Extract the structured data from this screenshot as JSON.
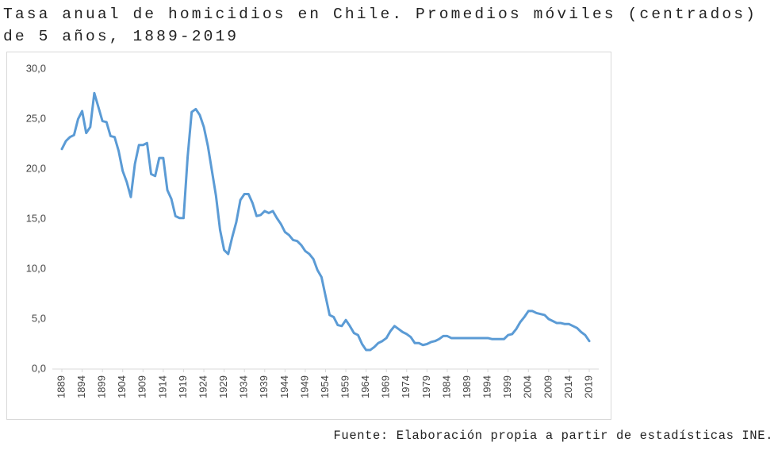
{
  "chart_data": {
    "type": "line",
    "title": "Tasa anual de homicidios en Chile. Promedios móviles (centrados) de 5 años, 1889-2019",
    "source": "Fuente: Elaboración propia a partir de estadísticas INE.",
    "x": [
      1889,
      1890,
      1891,
      1892,
      1893,
      1894,
      1895,
      1896,
      1897,
      1898,
      1899,
      1900,
      1901,
      1902,
      1903,
      1904,
      1905,
      1906,
      1907,
      1908,
      1909,
      1910,
      1911,
      1912,
      1913,
      1914,
      1915,
      1916,
      1917,
      1918,
      1919,
      1920,
      1921,
      1922,
      1923,
      1924,
      1925,
      1926,
      1927,
      1928,
      1929,
      1930,
      1931,
      1932,
      1933,
      1934,
      1935,
      1936,
      1937,
      1938,
      1939,
      1940,
      1941,
      1942,
      1943,
      1944,
      1945,
      1946,
      1947,
      1948,
      1949,
      1950,
      1951,
      1952,
      1953,
      1954,
      1955,
      1956,
      1957,
      1958,
      1959,
      1960,
      1961,
      1962,
      1963,
      1964,
      1965,
      1966,
      1967,
      1968,
      1969,
      1970,
      1971,
      1972,
      1973,
      1974,
      1975,
      1976,
      1977,
      1978,
      1979,
      1980,
      1981,
      1982,
      1983,
      1984,
      1985,
      1986,
      1987,
      1988,
      1989,
      1990,
      1991,
      1992,
      1993,
      1994,
      1995,
      1996,
      1997,
      1998,
      1999,
      2000,
      2001,
      2002,
      2003,
      2004,
      2005,
      2006,
      2007,
      2008,
      2009,
      2010,
      2011,
      2012,
      2013,
      2014,
      2015,
      2016,
      2017,
      2018,
      2019
    ],
    "series": [
      {
        "color": "#5b9bd5",
        "values": [
          22.0,
          22.8,
          23.2,
          23.4,
          25.0,
          25.8,
          23.6,
          24.2,
          27.6,
          26.2,
          24.8,
          24.7,
          23.3,
          23.2,
          21.8,
          19.8,
          18.7,
          17.2,
          20.5,
          22.4,
          22.4,
          22.6,
          19.5,
          19.3,
          21.1,
          21.1,
          17.9,
          17.0,
          15.3,
          15.1,
          15.1,
          21.2,
          25.7,
          26.0,
          25.4,
          24.2,
          22.3,
          19.8,
          17.3,
          13.9,
          11.9,
          11.5,
          13.2,
          14.7,
          16.9,
          17.5,
          17.5,
          16.6,
          15.3,
          15.4,
          15.8,
          15.6,
          15.8,
          15.1,
          14.5,
          13.7,
          13.4,
          12.9,
          12.8,
          12.4,
          11.8,
          11.5,
          11.0,
          9.9,
          9.2,
          7.3,
          5.4,
          5.2,
          4.4,
          4.3,
          4.9,
          4.3,
          3.6,
          3.4,
          2.5,
          1.9,
          1.9,
          2.2,
          2.6,
          2.8,
          3.1,
          3.8,
          4.3,
          4.0,
          3.7,
          3.5,
          3.2,
          2.6,
          2.6,
          2.4,
          2.5,
          2.7,
          2.8,
          3.0,
          3.3,
          3.3,
          3.1,
          3.1,
          3.1,
          3.1,
          3.1,
          3.1,
          3.1,
          3.1,
          3.1,
          3.1,
          3.0,
          3.0,
          3.0,
          3.0,
          3.4,
          3.5,
          4.0,
          4.7,
          5.2,
          5.8,
          5.8,
          5.6,
          5.5,
          5.4,
          5.0,
          4.8,
          4.6,
          4.6,
          4.5,
          4.5,
          4.3,
          4.1,
          3.7,
          3.4,
          2.8
        ]
      }
    ],
    "xlim": [
      1889,
      2019
    ],
    "xticks": [
      1889,
      1894,
      1899,
      1904,
      1909,
      1914,
      1919,
      1924,
      1929,
      1934,
      1939,
      1944,
      1949,
      1954,
      1959,
      1964,
      1969,
      1974,
      1979,
      1984,
      1989,
      1994,
      1999,
      2004,
      2009,
      2014,
      2019
    ],
    "ylim": [
      0,
      30
    ],
    "yticks": [
      {
        "value": 0,
        "label": "0,0"
      },
      {
        "value": 5,
        "label": "5,0"
      },
      {
        "value": 10,
        "label": "10,0"
      },
      {
        "value": 15,
        "label": "15,0"
      },
      {
        "value": 20,
        "label": "20,0"
      },
      {
        "value": 25,
        "label": "25,0"
      },
      {
        "value": 30,
        "label": "30,0"
      }
    ],
    "grid": false
  }
}
